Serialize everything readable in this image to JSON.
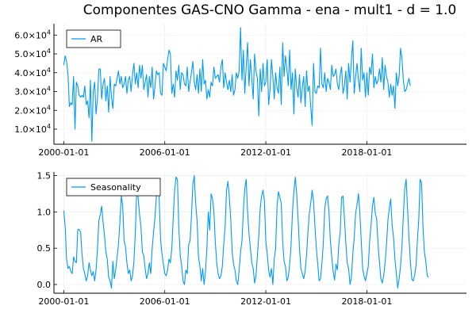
{
  "chart_data": [
    {
      "type": "line",
      "title": "Componentes GAS-CNO Gamma - ena - mult1 - d = 1.0",
      "xlabel": "",
      "ylabel": "",
      "x_start": "2000-01-01",
      "x_frequency": "monthly",
      "x_ticks": [
        "2000-01-01",
        "2006-01-01",
        "2012-01-01",
        "2018-01-01"
      ],
      "xlim": [
        "1999-06-01",
        "2023-12-01"
      ],
      "y_ticks": [
        10000,
        20000,
        30000,
        40000,
        50000,
        60000
      ],
      "y_tick_labels": [
        {
          "base": "1.0×10",
          "exp": "4"
        },
        {
          "base": "2.0×10",
          "exp": "4"
        },
        {
          "base": "3.0×10",
          "exp": "4"
        },
        {
          "base": "4.0×10",
          "exp": "4"
        },
        {
          "base": "5.0×10",
          "exp": "4"
        },
        {
          "base": "6.0×10",
          "exp": "4"
        }
      ],
      "ylim": [
        2000,
        66000
      ],
      "grid": true,
      "legend_position": "top-left",
      "series": [
        {
          "name": "AR",
          "color": "#009AFA",
          "values": [
            44000,
            49000,
            46000,
            39000,
            22000,
            24000,
            23000,
            38000,
            10000,
            35000,
            33000,
            28000,
            27000,
            28000,
            27000,
            33000,
            23000,
            25000,
            16000,
            36000,
            3500,
            30000,
            35000,
            18000,
            26000,
            42000,
            42000,
            26000,
            34000,
            37000,
            25000,
            33000,
            19000,
            38000,
            27000,
            21000,
            34000,
            33000,
            37000,
            41000,
            34000,
            38000,
            32000,
            34000,
            38000,
            29000,
            36000,
            38000,
            30000,
            39000,
            45000,
            34000,
            40000,
            32000,
            44000,
            37000,
            44000,
            31000,
            35000,
            39000,
            27000,
            38000,
            32000,
            43000,
            26000,
            33000,
            41000,
            39000,
            40000,
            29000,
            28000,
            45000,
            43000,
            41000,
            47000,
            52000,
            50000,
            29000,
            34000,
            27000,
            41000,
            36000,
            44000,
            31000,
            40000,
            39000,
            34000,
            33000,
            43000,
            30000,
            35000,
            40000,
            46000,
            35000,
            31000,
            39000,
            29000,
            42000,
            30000,
            47000,
            34000,
            36000,
            26000,
            31000,
            27000,
            35000,
            33000,
            43000,
            37000,
            38000,
            39000,
            35000,
            43000,
            47000,
            32000,
            40000,
            35000,
            31000,
            36000,
            30000,
            39000,
            28000,
            31000,
            40000,
            37000,
            41000,
            64000,
            36000,
            52000,
            29000,
            43000,
            56000,
            33000,
            47000,
            37000,
            26000,
            50000,
            41000,
            37000,
            17000,
            42000,
            30000,
            45000,
            33000,
            35000,
            47000,
            23000,
            31000,
            47000,
            38000,
            26000,
            40000,
            32000,
            29000,
            43000,
            23000,
            56000,
            38000,
            49000,
            42000,
            33000,
            52000,
            31000,
            40000,
            18000,
            42000,
            32000,
            27000,
            39000,
            24000,
            32000,
            38000,
            22000,
            41000,
            30000,
            33000,
            22000,
            12000,
            45000,
            30000,
            29000,
            33000,
            32000,
            53000,
            34000,
            32000,
            40000,
            30000,
            37000,
            35000,
            31000,
            44000,
            38000,
            39000,
            42000,
            34000,
            31000,
            39000,
            43000,
            29000,
            33000,
            41000,
            26000,
            45000,
            35000,
            47000,
            57000,
            29000,
            38000,
            45000,
            36000,
            30000,
            53000,
            36000,
            40000,
            27000,
            40000,
            28000,
            43000,
            39000,
            50000,
            32000,
            38000,
            34000,
            36000,
            42000,
            35000,
            48000,
            31000,
            44000,
            38000,
            35000,
            27000,
            34000,
            28000,
            33000,
            21000,
            40000,
            33000,
            38000,
            53000,
            48000,
            36000,
            30000,
            31000,
            34000,
            37000,
            33000
          ]
        }
      ]
    },
    {
      "type": "line",
      "title": "",
      "xlabel": "",
      "ylabel": "",
      "x_start": "2000-01-01",
      "x_frequency": "monthly",
      "x_ticks": [
        "2000-01-01",
        "2006-01-01",
        "2012-01-01",
        "2018-01-01"
      ],
      "xlim": [
        "1999-06-01",
        "2023-12-01"
      ],
      "y_ticks": [
        0.0,
        0.5,
        1.0,
        1.5
      ],
      "y_tick_labels": [
        "0.0",
        "0.5",
        "1.0",
        "1.5"
      ],
      "ylim": [
        -0.12,
        1.55
      ],
      "grid": true,
      "legend_position": "top-left",
      "series": [
        {
          "name": "Seasonality",
          "color": "#009AFA",
          "values": [
            1.02,
            0.8,
            0.35,
            0.22,
            0.25,
            0.18,
            0.15,
            0.38,
            0.32,
            0.3,
            0.76,
            0.76,
            0.72,
            0.42,
            0.22,
            0.15,
            0.05,
            0.12,
            0.3,
            0.2,
            0.12,
            0.18,
            0.05,
            0.2,
            0.48,
            0.88,
            0.96,
            1.08,
            0.86,
            0.68,
            0.45,
            0.35,
            0.1,
            0.05,
            -0.05,
            0.32,
            0.08,
            0.2,
            0.38,
            0.55,
            0.86,
            1.22,
            1.08,
            0.6,
            0.52,
            0.3,
            0.15,
            0.2,
            0.05,
            0.12,
            0.32,
            0.72,
            1.3,
            1.2,
            0.96,
            0.8,
            0.45,
            0.4,
            0.22,
            0.08,
            0.15,
            0.3,
            0.15,
            0.5,
            0.72,
            0.92,
            1.22,
            1.45,
            1.18,
            0.62,
            0.42,
            0.28,
            0.15,
            0.12,
            0.2,
            0.35,
            0.3,
            0.5,
            0.92,
            1.3,
            1.48,
            1.45,
            0.78,
            0.4,
            0.26,
            0.05,
            0.0,
            0.2,
            0.15,
            0.55,
            0.6,
            0.95,
            1.38,
            1.5,
            1.12,
            0.88,
            0.38,
            0.26,
            0.05,
            0.22,
            0.0,
            0.18,
            0.5,
            1.0,
            0.75,
            1.25,
            1.18,
            1.0,
            0.58,
            0.3,
            0.15,
            0.08,
            0.12,
            0.25,
            0.55,
            0.8,
            1.3,
            1.42,
            1.2,
            0.9,
            0.45,
            0.28,
            0.2,
            0.05,
            0.0,
            0.2,
            0.45,
            0.6,
            1.02,
            1.32,
            1.45,
            1.0,
            0.7,
            0.5,
            0.3,
            0.22,
            0.02,
            0.12,
            0.4,
            0.68,
            1.05,
            1.22,
            1.3,
            1.15,
            0.6,
            0.42,
            0.2,
            0.1,
            0.22,
            0.0,
            0.35,
            0.5,
            1.08,
            1.28,
            1.2,
            1.12,
            0.6,
            0.32,
            0.25,
            0.05,
            0.1,
            0.28,
            0.55,
            1.0,
            1.28,
            1.48,
            1.25,
            0.9,
            0.5,
            0.22,
            0.15,
            0.08,
            0.18,
            0.4,
            0.72,
            0.98,
            1.12,
            1.3,
            1.15,
            0.8,
            0.5,
            0.28,
            0.05,
            0.08,
            0.3,
            0.58,
            1.05,
            1.18,
            1.22,
            1.0,
            0.6,
            0.38,
            0.18,
            0.06,
            0.28,
            0.2,
            0.55,
            0.72,
            1.2,
            1.22,
            0.92,
            0.58,
            0.3,
            0.22,
            0.0,
            0.1,
            0.42,
            0.65,
            0.98,
            1.1,
            1.25,
            1.0,
            0.6,
            0.22,
            0.12,
            0.05,
            0.15,
            0.25,
            0.6,
            0.82,
            1.08,
            1.2,
            0.98,
            0.9,
            0.55,
            0.3,
            0.08,
            0.02,
            0.12,
            0.3,
            0.55,
            0.88,
            1.05,
            1.18,
            0.82,
            0.65,
            0.35,
            0.15,
            -0.05,
            0.08,
            0.25,
            0.52,
            0.95,
            1.32,
            1.45,
            1.05,
            0.65,
            0.32,
            0.08,
            0.05,
            0.12,
            0.25,
            0.6,
            0.9,
            1.45,
            1.4,
            0.8,
            0.45,
            0.32,
            0.12,
            0.1
          ]
        }
      ]
    }
  ]
}
